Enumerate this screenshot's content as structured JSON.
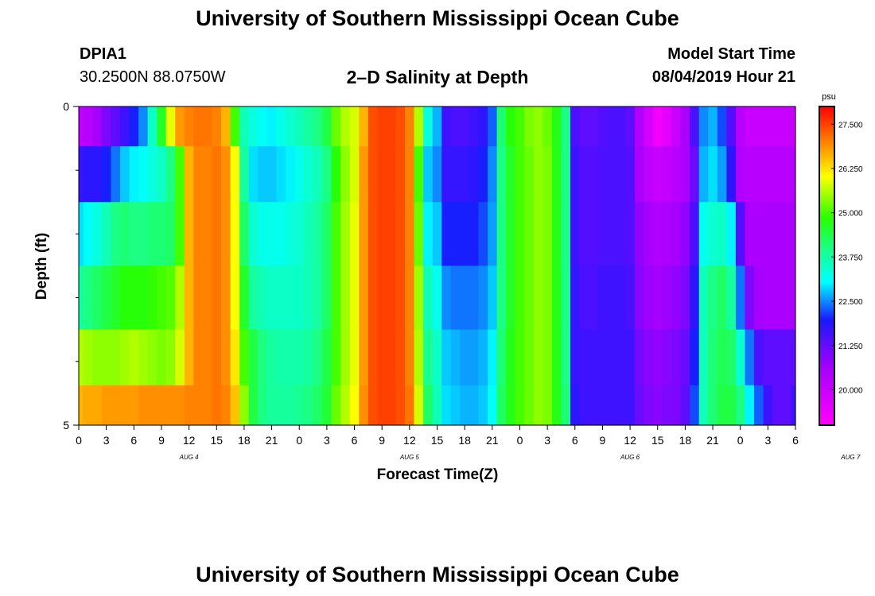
{
  "header": {
    "title": "University of Southern Mississippi Ocean Cube",
    "station": "DPIA1",
    "coords": "30.2500N 88.0750W",
    "plot_title": "2–D Salinity at Depth",
    "model_start_label": "Model Start Time",
    "model_start_value": "08/04/2019 Hour 21"
  },
  "footer": {
    "title": "University of Southern Mississippi Ocean Cube"
  },
  "chart_data": {
    "type": "heatmap",
    "title": "2–D Salinity at Depth",
    "xlabel": "Forecast Time(Z)",
    "ylabel": "Depth (ft)",
    "x_tick_labels": [
      "0",
      "3",
      "6",
      "9",
      "12",
      "15",
      "18",
      "21",
      "0",
      "3",
      "6",
      "9",
      "12",
      "15",
      "18",
      "21",
      "0",
      "3",
      "6",
      "9",
      "12",
      "15",
      "18",
      "21",
      "0",
      "3",
      "6"
    ],
    "date_labels": [
      "AUG 4",
      "AUG 5",
      "AUG 6",
      "AUG 7"
    ],
    "y_tick_labels": [
      "0",
      "5"
    ],
    "ylim": [
      0,
      5
    ],
    "colorbar": {
      "unit": "psu",
      "tick_labels": [
        "27.500",
        "26.250",
        "25.000",
        "23.750",
        "22.500",
        "21.250",
        "20.000"
      ],
      "min": 19.0,
      "max": 28.0
    },
    "depth_layers_ft": [
      0.25,
      1.0,
      2.0,
      3.0,
      4.0,
      4.75
    ],
    "hours": [
      0,
      1,
      2,
      3,
      4,
      5,
      6,
      7,
      8,
      9,
      10,
      11,
      12,
      13,
      14,
      15,
      16,
      17,
      18,
      19,
      20,
      21,
      22,
      23,
      24,
      25,
      26,
      27,
      28,
      29,
      30,
      31,
      32,
      33,
      34,
      35,
      36,
      37,
      38,
      39,
      40,
      41,
      42,
      43,
      44,
      45,
      46,
      47,
      48,
      49,
      50,
      51,
      52,
      53,
      54,
      55,
      56,
      57,
      58,
      59,
      60,
      61,
      62,
      63,
      64,
      65,
      66,
      67,
      68,
      69,
      70,
      71,
      72,
      73,
      74,
      75,
      76,
      77,
      78
    ],
    "values": [
      [
        20.1,
        20.3,
        20.6,
        21.0,
        21.3,
        21.6,
        22.0,
        22.5,
        23.5,
        24.6,
        25.9,
        26.8,
        27.0,
        27.1,
        27.1,
        27.0,
        26.6,
        25.0,
        23.6,
        23.3,
        23.1,
        23.0,
        23.2,
        23.4,
        23.6,
        23.8,
        24.0,
        24.4,
        25.2,
        25.6,
        25.8,
        26.6,
        27.4,
        27.5,
        27.5,
        27.4,
        27.0,
        25.6,
        23.3,
        22.7,
        21.6,
        21.5,
        21.5,
        21.6,
        21.8,
        22.3,
        24.1,
        24.8,
        25.0,
        25.3,
        25.4,
        25.2,
        24.7,
        24.0,
        21.5,
        21.3,
        21.3,
        21.4,
        21.5,
        21.5,
        21.3,
        20.4,
        19.8,
        19.2,
        19.5,
        20.0,
        20.5,
        21.5,
        22.5,
        22.7,
        22.2,
        21.4,
        20.3,
        20.0,
        20.0,
        20.0,
        20.0,
        20.0,
        20.0
      ],
      [
        21.7,
        21.8,
        21.8,
        22.0,
        22.4,
        22.8,
        23.0,
        23.1,
        23.3,
        23.5,
        24.0,
        25.0,
        26.6,
        27.0,
        27.0,
        27.1,
        26.9,
        26.0,
        23.8,
        22.9,
        22.8,
        22.8,
        22.9,
        23.0,
        23.2,
        23.4,
        23.6,
        24.0,
        24.8,
        25.4,
        25.8,
        26.8,
        27.4,
        27.5,
        27.5,
        27.4,
        27.0,
        25.0,
        22.8,
        22.5,
        21.7,
        21.7,
        21.7,
        21.8,
        22.0,
        22.5,
        24.0,
        24.6,
        25.0,
        25.2,
        25.4,
        25.3,
        24.7,
        24.0,
        21.6,
        21.4,
        21.4,
        21.5,
        21.5,
        21.5,
        21.4,
        20.5,
        20.2,
        20.0,
        20.1,
        20.3,
        20.5,
        21.2,
        22.7,
        22.9,
        22.6,
        21.8,
        20.4,
        20.3,
        20.3,
        20.3,
        20.3,
        20.3,
        20.3
      ],
      [
        22.9,
        23.1,
        23.3,
        23.6,
        24.0,
        24.1,
        24.0,
        24.0,
        24.1,
        24.1,
        24.2,
        25.0,
        26.6,
        27.0,
        27.0,
        27.1,
        26.9,
        26.0,
        24.2,
        23.4,
        23.2,
        23.2,
        23.2,
        23.3,
        23.4,
        23.6,
        23.8,
        24.2,
        25.0,
        25.5,
        25.9,
        26.8,
        27.4,
        27.5,
        27.5,
        27.4,
        27.0,
        25.2,
        23.0,
        22.8,
        22.0,
        22.0,
        22.0,
        22.0,
        22.2,
        22.6,
        24.0,
        24.6,
        25.0,
        25.2,
        25.4,
        25.3,
        24.7,
        24.0,
        21.6,
        21.4,
        21.4,
        21.5,
        21.5,
        21.5,
        21.4,
        20.8,
        20.6,
        20.4,
        20.5,
        20.6,
        20.8,
        21.5,
        23.2,
        23.4,
        23.5,
        23.0,
        21.4,
        20.5,
        20.5,
        20.5,
        20.5,
        20.5,
        20.5
      ],
      [
        23.8,
        24.0,
        24.2,
        24.4,
        24.6,
        24.8,
        24.8,
        24.8,
        24.9,
        25.0,
        25.1,
        25.6,
        26.6,
        27.0,
        27.0,
        27.1,
        26.9,
        26.0,
        24.6,
        23.8,
        23.6,
        23.5,
        23.5,
        23.5,
        23.5,
        23.6,
        23.8,
        24.2,
        25.0,
        25.5,
        25.9,
        26.8,
        27.4,
        27.5,
        27.5,
        27.4,
        27.0,
        25.5,
        23.6,
        23.2,
        22.5,
        22.4,
        22.4,
        22.4,
        22.5,
        22.8,
        24.0,
        24.6,
        25.0,
        25.2,
        25.4,
        25.3,
        24.7,
        24.0,
        21.7,
        21.5,
        21.5,
        21.6,
        21.6,
        21.6,
        21.5,
        20.9,
        20.7,
        20.6,
        20.7,
        20.8,
        21.0,
        21.8,
        23.6,
        24.0,
        24.2,
        23.8,
        22.4,
        21.0,
        20.6,
        20.5,
        20.5,
        20.5,
        20.5
      ],
      [
        25.6,
        25.5,
        25.4,
        25.4,
        25.4,
        25.5,
        25.6,
        25.5,
        25.4,
        25.3,
        25.4,
        25.8,
        26.6,
        27.0,
        27.0,
        27.1,
        26.9,
        26.2,
        25.0,
        24.4,
        24.0,
        23.8,
        23.7,
        23.7,
        23.7,
        23.8,
        24.0,
        24.4,
        25.0,
        25.5,
        25.9,
        26.8,
        27.4,
        27.5,
        27.5,
        27.4,
        27.0,
        25.6,
        23.9,
        23.5,
        22.8,
        22.7,
        22.6,
        22.6,
        22.7,
        23.0,
        24.1,
        24.7,
        25.0,
        25.2,
        25.4,
        25.3,
        24.7,
        24.0,
        21.7,
        21.6,
        21.6,
        21.6,
        21.6,
        21.6,
        21.6,
        21.1,
        20.9,
        20.8,
        20.9,
        21.0,
        21.2,
        22.0,
        23.6,
        24.1,
        24.3,
        24.2,
        23.4,
        22.4,
        21.5,
        21.3,
        21.3,
        21.3,
        21.3
      ],
      [
        26.6,
        26.7,
        26.7,
        26.8,
        26.8,
        26.8,
        26.8,
        26.9,
        26.9,
        26.9,
        26.9,
        26.9,
        27.0,
        27.0,
        27.0,
        27.1,
        27.0,
        26.5,
        25.4,
        24.4,
        24.0,
        23.8,
        23.8,
        23.8,
        23.9,
        24.0,
        24.2,
        24.5,
        25.2,
        25.6,
        26.0,
        26.9,
        27.4,
        27.5,
        27.5,
        27.4,
        27.1,
        25.8,
        24.2,
        23.6,
        22.9,
        22.8,
        22.7,
        22.7,
        22.8,
        23.1,
        24.2,
        24.7,
        25.0,
        25.2,
        25.4,
        25.3,
        24.7,
        24.1,
        21.8,
        21.6,
        21.6,
        21.6,
        21.6,
        21.6,
        21.6,
        21.2,
        21.0,
        20.9,
        21.0,
        21.0,
        21.3,
        22.2,
        23.6,
        24.1,
        24.4,
        24.4,
        24.0,
        23.0,
        22.3,
        21.6,
        21.3,
        21.3,
        21.6
      ]
    ]
  }
}
